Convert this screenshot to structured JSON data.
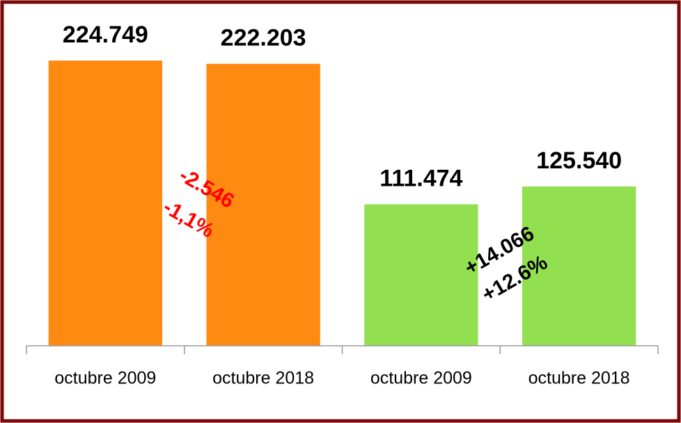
{
  "chart_data": {
    "type": "bar",
    "categories": [
      "octubre 2009",
      "octubre 2018",
      "octubre 2009",
      "octubre 2018"
    ],
    "values": [
      224749,
      222203,
      111474,
      125540
    ],
    "value_labels": [
      "224.749",
      "222.203",
      "111.474",
      "125.540"
    ],
    "colors": [
      "#ff8a12",
      "#ff8a12",
      "#92e050",
      "#92e050"
    ],
    "ylim": [
      0,
      250000
    ],
    "annotations": [
      {
        "text": "-2.546",
        "color": "#ff0000"
      },
      {
        "text": "-1,1%",
        "color": "#ff0000"
      },
      {
        "text": "+14.066",
        "color": "#000000"
      },
      {
        "text": "+12.6%",
        "color": "#000000"
      }
    ]
  }
}
